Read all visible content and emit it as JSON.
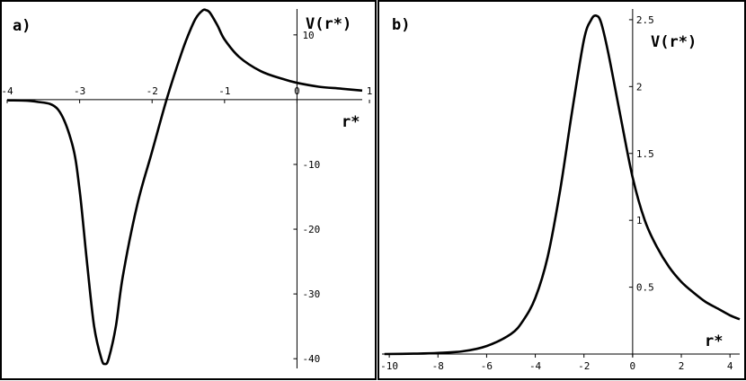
{
  "chart_data": [
    {
      "type": "line",
      "panel_label": "a)",
      "ylabel": "V(r*)",
      "xlabel": "r*",
      "xlim": [
        -4,
        0.9
      ],
      "ylim": [
        -41.5,
        14
      ],
      "grid": false,
      "x_ticks": [
        -4,
        -3,
        -2,
        -1,
        0,
        1
      ],
      "x_tick_labels": [
        "-4",
        "-3",
        "-2",
        "-1",
        "0",
        "1"
      ],
      "y_ticks": [
        -40,
        -30,
        -20,
        -10,
        10
      ],
      "y_tick_labels": [
        "-40",
        "-30",
        "-20",
        "-10",
        "10"
      ],
      "series": [
        {
          "x": [
            -4.0,
            -3.6,
            -3.3,
            -3.1,
            -3.0,
            -2.9,
            -2.8,
            -2.7,
            -2.65,
            -2.6,
            -2.5,
            -2.4,
            -2.2,
            -2.0,
            -1.8,
            -1.6,
            -1.5,
            -1.4,
            -1.3,
            -1.25,
            -1.2,
            -1.1,
            -1.0,
            -0.8,
            -0.5,
            -0.2,
            0.0,
            0.3,
            0.6,
            0.9
          ],
          "y": [
            -0.1,
            -0.3,
            -1.5,
            -7,
            -14,
            -25,
            -35,
            -40,
            -40.8,
            -40,
            -35,
            -27,
            -16,
            -8,
            0,
            7,
            10,
            12.5,
            13.8,
            13.8,
            13.4,
            11.5,
            9.3,
            6.6,
            4.4,
            3.2,
            2.6,
            2.0,
            1.7,
            1.4
          ]
        }
      ]
    },
    {
      "type": "line",
      "panel_label": "b)",
      "ylabel": "V(r*)",
      "xlabel": "r*",
      "xlim": [
        -10.3,
        4.4
      ],
      "ylim": [
        -0.02,
        2.58
      ],
      "grid": false,
      "x_ticks": [
        -10,
        -8,
        -6,
        -4,
        -2,
        0,
        2,
        4
      ],
      "x_tick_labels": [
        "-10",
        "-8",
        "-6",
        "-4",
        "-2",
        "0",
        "2",
        "4"
      ],
      "y_ticks": [
        0.5,
        1,
        1.5,
        2,
        2.5
      ],
      "y_tick_labels": [
        "0.5",
        "1",
        "1.5",
        "2",
        "2.5"
      ],
      "series": [
        {
          "x": [
            -10.2,
            -9,
            -8,
            -7,
            -6,
            -5,
            -4.5,
            -4,
            -3.5,
            -3,
            -2.5,
            -2,
            -1.7,
            -1.5,
            -1.3,
            -1,
            -0.5,
            0,
            0.5,
            1,
            1.5,
            2,
            2.5,
            3,
            3.5,
            4,
            4.4
          ],
          "y": [
            0.0,
            0.003,
            0.008,
            0.02,
            0.06,
            0.15,
            0.25,
            0.42,
            0.72,
            1.2,
            1.8,
            2.35,
            2.5,
            2.53,
            2.48,
            2.25,
            1.78,
            1.32,
            1.0,
            0.8,
            0.65,
            0.54,
            0.46,
            0.39,
            0.34,
            0.29,
            0.26
          ]
        }
      ]
    }
  ]
}
